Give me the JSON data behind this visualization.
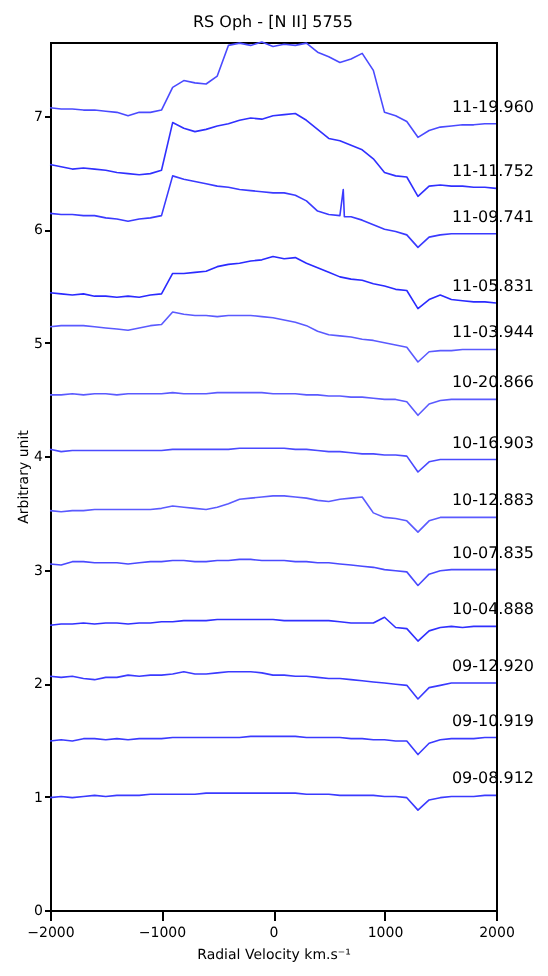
{
  "chart_data": {
    "type": "line",
    "title": "RS Oph - [N II] 5755",
    "xlabel": "Radial Velocity  km.s⁻¹",
    "ylabel": "Arbitrary unit",
    "x": [
      -2000,
      -1900,
      -1800,
      -1700,
      -1600,
      -1500,
      -1400,
      -1300,
      -1200,
      -1100,
      -1000,
      -900,
      -800,
      -700,
      -600,
      -500,
      -400,
      -300,
      -200,
      -100,
      0,
      100,
      200,
      300,
      400,
      500,
      600,
      700,
      800,
      900,
      1000,
      1100,
      1200,
      1300,
      1400,
      1500,
      1600,
      1700,
      1800,
      1900,
      2000
    ],
    "xlim": [
      -2000,
      2000
    ],
    "xticks": [
      -2000,
      -1000,
      0,
      1000,
      2000
    ],
    "ylim": [
      0,
      7.65
    ],
    "yticks": [
      0,
      1,
      2,
      3,
      4,
      5,
      6,
      7
    ],
    "grid": false,
    "legend": false,
    "line_style": "solid",
    "series": [
      {
        "name": "11-19.960",
        "color": "#4a4aff",
        "values": [
          7.07,
          7.06,
          7.06,
          7.05,
          7.05,
          7.04,
          7.03,
          7.0,
          7.03,
          7.03,
          7.05,
          7.25,
          7.31,
          7.29,
          7.28,
          7.35,
          7.62,
          7.64,
          7.62,
          7.65,
          7.61,
          7.63,
          7.62,
          7.64,
          7.56,
          7.52,
          7.47,
          7.5,
          7.55,
          7.4,
          7.03,
          7.0,
          6.95,
          6.81,
          6.87,
          6.9,
          6.91,
          6.92,
          6.92,
          6.93,
          6.93
        ]
      },
      {
        "name": "11-11.752",
        "color": "#3030ff",
        "values": [
          6.57,
          6.55,
          6.53,
          6.54,
          6.53,
          6.52,
          6.5,
          6.49,
          6.48,
          6.49,
          6.52,
          6.94,
          6.89,
          6.86,
          6.88,
          6.91,
          6.93,
          6.96,
          6.98,
          6.97,
          7.0,
          7.01,
          7.02,
          6.96,
          6.88,
          6.8,
          6.78,
          6.74,
          6.7,
          6.62,
          6.5,
          6.47,
          6.46,
          6.29,
          6.38,
          6.39,
          6.38,
          6.38,
          6.37,
          6.37,
          6.36
        ]
      },
      {
        "name": "11-09.741",
        "color": "#3a3aff",
        "x": [
          -2000,
          -1900,
          -1800,
          -1700,
          -1600,
          -1500,
          -1400,
          -1300,
          -1200,
          -1100,
          -1000,
          -900,
          -800,
          -700,
          -600,
          -500,
          -400,
          -300,
          -200,
          -100,
          0,
          100,
          200,
          300,
          400,
          500,
          600,
          630,
          640,
          700,
          800,
          900,
          1000,
          1100,
          1200,
          1300,
          1400,
          1500,
          1600,
          1700,
          1800,
          1900,
          2000
        ],
        "values": [
          6.14,
          6.13,
          6.13,
          6.12,
          6.12,
          6.1,
          6.09,
          6.07,
          6.09,
          6.1,
          6.12,
          6.47,
          6.44,
          6.42,
          6.4,
          6.38,
          6.37,
          6.35,
          6.34,
          6.33,
          6.32,
          6.32,
          6.3,
          6.25,
          6.16,
          6.13,
          6.12,
          6.35,
          6.11,
          6.11,
          6.08,
          6.04,
          6.0,
          5.98,
          5.95,
          5.84,
          5.93,
          5.95,
          5.96,
          5.96,
          5.96,
          5.96,
          5.96
        ]
      },
      {
        "name": "11-05.831",
        "color": "#2a2aff",
        "values": [
          5.44,
          5.43,
          5.42,
          5.43,
          5.41,
          5.41,
          5.4,
          5.41,
          5.4,
          5.42,
          5.43,
          5.61,
          5.61,
          5.62,
          5.63,
          5.67,
          5.69,
          5.7,
          5.72,
          5.73,
          5.76,
          5.74,
          5.75,
          5.7,
          5.66,
          5.62,
          5.58,
          5.56,
          5.55,
          5.52,
          5.5,
          5.47,
          5.46,
          5.3,
          5.38,
          5.42,
          5.38,
          5.37,
          5.36,
          5.36,
          5.35
        ]
      },
      {
        "name": "11-03.944",
        "color": "#5a5aff",
        "values": [
          5.14,
          5.15,
          5.15,
          5.15,
          5.14,
          5.13,
          5.12,
          5.11,
          5.13,
          5.15,
          5.16,
          5.27,
          5.25,
          5.24,
          5.24,
          5.23,
          5.24,
          5.24,
          5.24,
          5.23,
          5.22,
          5.2,
          5.18,
          5.15,
          5.1,
          5.07,
          5.06,
          5.05,
          5.03,
          5.02,
          5.0,
          4.98,
          4.96,
          4.83,
          4.92,
          4.93,
          4.93,
          4.94,
          4.94,
          4.94,
          4.94
        ]
      },
      {
        "name": "10-20.866",
        "color": "#5a5aff",
        "values": [
          4.54,
          4.54,
          4.55,
          4.54,
          4.55,
          4.55,
          4.54,
          4.55,
          4.55,
          4.55,
          4.55,
          4.56,
          4.55,
          4.55,
          4.55,
          4.56,
          4.56,
          4.56,
          4.56,
          4.56,
          4.55,
          4.55,
          4.55,
          4.54,
          4.54,
          4.53,
          4.53,
          4.52,
          4.52,
          4.51,
          4.5,
          4.5,
          4.48,
          4.36,
          4.46,
          4.49,
          4.5,
          4.5,
          4.5,
          4.5,
          4.5
        ]
      },
      {
        "name": "10-16.903",
        "color": "#4a4aff",
        "values": [
          4.06,
          4.04,
          4.05,
          4.05,
          4.05,
          4.05,
          4.05,
          4.05,
          4.05,
          4.05,
          4.05,
          4.06,
          4.06,
          4.06,
          4.06,
          4.06,
          4.06,
          4.07,
          4.07,
          4.07,
          4.07,
          4.07,
          4.06,
          4.06,
          4.05,
          4.04,
          4.04,
          4.03,
          4.02,
          4.02,
          4.01,
          4.01,
          4.0,
          3.86,
          3.95,
          3.97,
          3.97,
          3.97,
          3.97,
          3.97,
          3.97
        ]
      },
      {
        "name": "10-12.883",
        "color": "#5a5aff",
        "values": [
          3.52,
          3.51,
          3.52,
          3.52,
          3.53,
          3.53,
          3.53,
          3.53,
          3.53,
          3.53,
          3.54,
          3.56,
          3.55,
          3.54,
          3.53,
          3.55,
          3.58,
          3.62,
          3.63,
          3.64,
          3.65,
          3.65,
          3.64,
          3.63,
          3.61,
          3.6,
          3.62,
          3.63,
          3.64,
          3.5,
          3.46,
          3.45,
          3.43,
          3.33,
          3.43,
          3.46,
          3.46,
          3.46,
          3.46,
          3.46,
          3.46
        ]
      },
      {
        "name": "10-07.835",
        "color": "#4a4aff",
        "values": [
          3.05,
          3.04,
          3.07,
          3.07,
          3.06,
          3.06,
          3.06,
          3.05,
          3.06,
          3.07,
          3.07,
          3.08,
          3.08,
          3.07,
          3.07,
          3.08,
          3.08,
          3.09,
          3.09,
          3.08,
          3.08,
          3.08,
          3.07,
          3.07,
          3.06,
          3.06,
          3.05,
          3.04,
          3.03,
          3.02,
          3.0,
          2.99,
          2.98,
          2.86,
          2.96,
          2.99,
          3.0,
          3.0,
          3.0,
          3.0,
          3.0
        ]
      },
      {
        "name": "10-04.888",
        "color": "#3030ff",
        "values": [
          2.51,
          2.52,
          2.52,
          2.53,
          2.52,
          2.53,
          2.53,
          2.52,
          2.53,
          2.53,
          2.54,
          2.54,
          2.55,
          2.55,
          2.55,
          2.56,
          2.56,
          2.56,
          2.56,
          2.56,
          2.56,
          2.55,
          2.55,
          2.55,
          2.55,
          2.55,
          2.54,
          2.53,
          2.53,
          2.53,
          2.58,
          2.49,
          2.48,
          2.37,
          2.46,
          2.49,
          2.5,
          2.49,
          2.5,
          2.5,
          2.5
        ]
      },
      {
        "name": "09-12.920",
        "color": "#3a3aff",
        "values": [
          2.06,
          2.05,
          2.06,
          2.04,
          2.03,
          2.05,
          2.05,
          2.07,
          2.06,
          2.07,
          2.07,
          2.08,
          2.1,
          2.08,
          2.08,
          2.09,
          2.1,
          2.1,
          2.1,
          2.09,
          2.07,
          2.07,
          2.06,
          2.06,
          2.05,
          2.04,
          2.04,
          2.03,
          2.02,
          2.01,
          2.0,
          1.99,
          1.98,
          1.86,
          1.96,
          1.98,
          2.0,
          2.0,
          2.0,
          2.0,
          2.0
        ]
      },
      {
        "name": "09-10.919",
        "color": "#3a3aff",
        "values": [
          1.49,
          1.5,
          1.49,
          1.51,
          1.51,
          1.5,
          1.51,
          1.5,
          1.51,
          1.51,
          1.51,
          1.52,
          1.52,
          1.52,
          1.52,
          1.52,
          1.52,
          1.52,
          1.53,
          1.53,
          1.53,
          1.53,
          1.53,
          1.52,
          1.52,
          1.52,
          1.52,
          1.51,
          1.51,
          1.5,
          1.5,
          1.49,
          1.49,
          1.37,
          1.47,
          1.5,
          1.51,
          1.51,
          1.51,
          1.52,
          1.52
        ]
      },
      {
        "name": "09-08.912",
        "color": "#3a3aff",
        "values": [
          0.99,
          1.0,
          0.99,
          1.0,
          1.01,
          1.0,
          1.01,
          1.01,
          1.01,
          1.02,
          1.02,
          1.02,
          1.02,
          1.02,
          1.03,
          1.03,
          1.03,
          1.03,
          1.03,
          1.03,
          1.03,
          1.03,
          1.03,
          1.02,
          1.02,
          1.02,
          1.01,
          1.01,
          1.01,
          1.01,
          1.0,
          1.0,
          0.99,
          0.88,
          0.97,
          0.99,
          1.0,
          1.0,
          1.0,
          1.01,
          1.01
        ]
      }
    ]
  }
}
